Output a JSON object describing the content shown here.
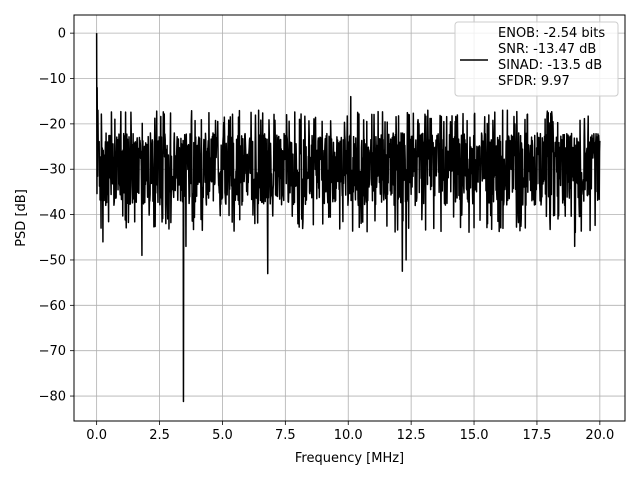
{
  "chart_data": {
    "type": "line",
    "title": "",
    "xlabel": "Frequency [MHz]",
    "ylabel": "PSD [dB]",
    "xlim": [
      -0.9,
      21.0
    ],
    "ylim": [
      -85.5,
      4.0
    ],
    "xticks": [
      0.0,
      2.5,
      5.0,
      7.5,
      10.0,
      12.5,
      15.0,
      17.5,
      20.0
    ],
    "xtick_labels": [
      "0.0",
      "2.5",
      "5.0",
      "7.5",
      "10.0",
      "12.5",
      "15.0",
      "17.5",
      "20.0"
    ],
    "yticks": [
      0,
      -10,
      -20,
      -30,
      -40,
      -50,
      -60,
      -70,
      -80
    ],
    "ytick_labels": [
      "0",
      "−10",
      "−20",
      "−30",
      "−40",
      "−50",
      "−60",
      "−70",
      "−80"
    ],
    "grid": true,
    "legend_placement": "top-right",
    "series": [
      {
        "name": "ENOB: -2.54 bits\nSNR: -13.47 dB\nSINAD: -13.5 dB\nSFDR: 9.97",
        "color": "#000000",
        "x_range": [
          0.0,
          20.0
        ],
        "noise_band": {
          "min": -44,
          "max": -17
        },
        "features": [
          {
            "x": 0.0,
            "y": 0.0
          },
          {
            "x": 0.02,
            "y": -12
          },
          {
            "x": 0.05,
            "y": -17
          },
          {
            "x": 0.25,
            "y": -46
          },
          {
            "x": 1.8,
            "y": -49
          },
          {
            "x": 3.45,
            "y": -81.2
          },
          {
            "x": 3.55,
            "y": -47
          },
          {
            "x": 6.8,
            "y": -53
          },
          {
            "x": 10.1,
            "y": -14
          },
          {
            "x": 12.15,
            "y": -52.5
          },
          {
            "x": 12.3,
            "y": -50
          },
          {
            "x": 19.0,
            "y": -47
          }
        ]
      }
    ]
  }
}
